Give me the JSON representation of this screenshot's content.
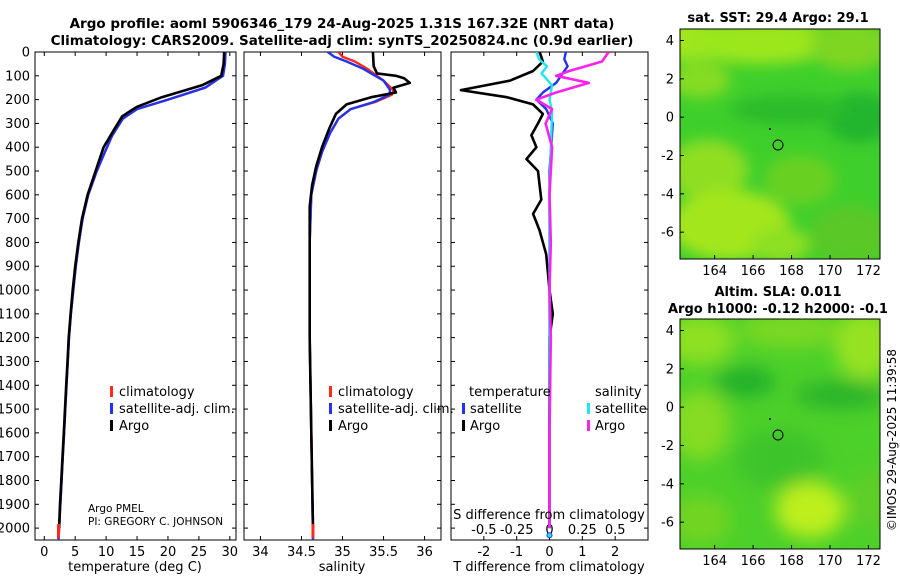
{
  "title": {
    "line1": "Argo profile: aoml 5906346_179 24-Aug-2025 1.31S 167.32E (NRT data)",
    "line2": "Climatology: CARS2009. Satellite-adj clim: synTS_20250824.nc (0.9d earlier)"
  },
  "footer": {
    "operator": "Argo PMEL",
    "pi": "PI: GREGORY C. JOHNSON",
    "stamp": "©IMOS 29-Aug-2025 11:39:58"
  },
  "colors": {
    "climatology": "#ff2a1a",
    "satellite_clim": "#2233ee",
    "argo": "#000000",
    "s_satellite": "#22e5f0",
    "s_argo": "#ff22ee",
    "map_base": "#2ec42a"
  },
  "chart_data": [
    {
      "id": "temperature",
      "type": "line",
      "xlabel": "temperature (deg C)",
      "ylabel": "",
      "xlim": [
        -1.5,
        31
      ],
      "ylim": [
        2050,
        0
      ],
      "xticks": [
        0,
        5,
        10,
        15,
        20,
        25,
        30
      ],
      "yticks": [
        0,
        100,
        200,
        300,
        400,
        500,
        600,
        700,
        800,
        900,
        1000,
        1100,
        1200,
        1300,
        1400,
        1500,
        1600,
        1700,
        1800,
        1900,
        2000
      ],
      "legend": [
        "climatology",
        "satellite-adj. clim.",
        "Argo"
      ],
      "series": [
        {
          "name": "climatology",
          "color": "#ff2a1a",
          "points": [
            [
              29.3,
              0
            ],
            [
              29.2,
              50
            ],
            [
              28.9,
              100
            ],
            [
              26,
              150
            ],
            [
              20,
              200
            ],
            [
              15,
              240
            ],
            [
              12.7,
              280
            ],
            [
              11,
              350
            ],
            [
              9.8,
              420
            ],
            [
              8.5,
              500
            ],
            [
              7.1,
              600
            ],
            [
              6.2,
              700
            ],
            [
              5.6,
              800
            ],
            [
              5.1,
              900
            ],
            [
              4.7,
              1000
            ],
            [
              4.3,
              1100
            ],
            [
              4,
              1200
            ],
            [
              3.8,
              1300
            ],
            [
              3.6,
              1400
            ],
            [
              3.4,
              1500
            ],
            [
              3.2,
              1600
            ],
            [
              3,
              1700
            ],
            [
              2.8,
              1800
            ],
            [
              2.6,
              1900
            ],
            [
              2.4,
              2000
            ],
            [
              2.3,
              2050
            ]
          ]
        },
        {
          "name": "satellite-adj. clim.",
          "color": "#2233ee",
          "points": [
            [
              29.3,
              0
            ],
            [
              29.2,
              50
            ],
            [
              28.9,
              100
            ],
            [
              26,
              150
            ],
            [
              20,
              200
            ],
            [
              15,
              240
            ],
            [
              12.7,
              280
            ],
            [
              11,
              350
            ],
            [
              9.8,
              420
            ],
            [
              8.5,
              500
            ],
            [
              7.1,
              600
            ],
            [
              6.2,
              700
            ],
            [
              5.6,
              800
            ],
            [
              5.1,
              900
            ],
            [
              4.7,
              1000
            ],
            [
              4.3,
              1100
            ],
            [
              4,
              1200
            ],
            [
              3.8,
              1300
            ],
            [
              3.6,
              1400
            ],
            [
              3.4,
              1500
            ],
            [
              3.2,
              1600
            ],
            [
              3,
              1700
            ],
            [
              2.8,
              1800
            ],
            [
              2.6,
              1900
            ],
            [
              2.4,
              2000
            ],
            [
              2.3,
              2050
            ]
          ]
        },
        {
          "name": "Argo",
          "color": "#000000",
          "points": [
            [
              29.1,
              0
            ],
            [
              29,
              50
            ],
            [
              28.6,
              100
            ],
            [
              25.5,
              140
            ],
            [
              19,
              190
            ],
            [
              15,
              230
            ],
            [
              12.6,
              270
            ],
            [
              11.2,
              330
            ],
            [
              9.6,
              400
            ],
            [
              8.3,
              500
            ],
            [
              7,
              600
            ],
            [
              6.1,
              700
            ],
            [
              5.5,
              800
            ],
            [
              5,
              900
            ],
            [
              4.6,
              1000
            ],
            [
              4.25,
              1100
            ],
            [
              3.95,
              1200
            ],
            [
              3.75,
              1300
            ],
            [
              3.55,
              1400
            ],
            [
              3.35,
              1500
            ],
            [
              3.15,
              1600
            ],
            [
              2.95,
              1700
            ],
            [
              2.75,
              1800
            ],
            [
              2.55,
              1900
            ],
            [
              2.4,
              2000
            ]
          ]
        }
      ]
    },
    {
      "id": "salinity",
      "type": "line",
      "xlabel": "salinity",
      "ylabel": "",
      "xlim": [
        33.8,
        36.2
      ],
      "ylim": [
        2050,
        0
      ],
      "xticks": [
        34,
        34.5,
        35,
        35.5,
        36
      ],
      "xtick_labels": [
        "34",
        "34.5",
        "35",
        "35.5",
        "36"
      ],
      "legend": [
        "climatology",
        "satellite-adj. clim.",
        "Argo"
      ],
      "series": [
        {
          "name": "climatology",
          "color": "#ff2a1a",
          "points": [
            [
              34.95,
              0
            ],
            [
              35,
              20
            ],
            [
              35.15,
              40
            ],
            [
              35.3,
              70
            ],
            [
              35.5,
              120
            ],
            [
              35.62,
              160
            ],
            [
              35.6,
              180
            ],
            [
              35.4,
              210
            ],
            [
              35.1,
              240
            ],
            [
              34.95,
              280
            ],
            [
              34.85,
              340
            ],
            [
              34.75,
              420
            ],
            [
              34.68,
              500
            ],
            [
              34.62,
              600
            ],
            [
              34.6,
              800
            ],
            [
              34.6,
              1200
            ],
            [
              34.62,
              1600
            ],
            [
              34.64,
              2050
            ]
          ]
        },
        {
          "name": "satellite-adj. clim.",
          "color": "#2233ee",
          "points": [
            [
              34.82,
              0
            ],
            [
              34.9,
              20
            ],
            [
              35.05,
              40
            ],
            [
              35.25,
              70
            ],
            [
              35.5,
              120
            ],
            [
              35.58,
              160
            ],
            [
              35.57,
              180
            ],
            [
              35.38,
              210
            ],
            [
              35.1,
              240
            ],
            [
              34.95,
              280
            ],
            [
              34.85,
              340
            ],
            [
              34.75,
              420
            ],
            [
              34.68,
              500
            ],
            [
              34.62,
              600
            ],
            [
              34.6,
              800
            ],
            [
              34.6,
              1200
            ],
            [
              34.62,
              1600
            ],
            [
              34.64,
              2050
            ]
          ]
        },
        {
          "name": "Argo",
          "color": "#000000",
          "points": [
            [
              35.37,
              0
            ],
            [
              35.38,
              60
            ],
            [
              35.42,
              90
            ],
            [
              35.65,
              100
            ],
            [
              35.75,
              110
            ],
            [
              35.82,
              130
            ],
            [
              35.62,
              150
            ],
            [
              35.65,
              170
            ],
            [
              35.35,
              190
            ],
            [
              35.05,
              220
            ],
            [
              34.92,
              260
            ],
            [
              34.84,
              320
            ],
            [
              34.75,
              400
            ],
            [
              34.68,
              480
            ],
            [
              34.63,
              560
            ],
            [
              34.6,
              650
            ],
            [
              34.6,
              800
            ],
            [
              34.6,
              1200
            ],
            [
              34.62,
              1600
            ],
            [
              34.64,
              2000
            ]
          ]
        }
      ]
    },
    {
      "id": "difference",
      "type": "line",
      "xlabel": "T difference from climatology",
      "top_label": "S difference from climatology",
      "xlim": [
        -3,
        3
      ],
      "ylim": [
        2050,
        0
      ],
      "xticks": [
        -2,
        -1,
        0,
        1,
        2
      ],
      "s_xticks": [
        -0.5,
        -0.25,
        0,
        0.25,
        0.5
      ],
      "s_xtick_labels": [
        "-0.5",
        "-0.25",
        "0",
        "0.25",
        "0.5"
      ],
      "s_scale": 4,
      "legend_headers": [
        "temperature",
        "salinity"
      ],
      "legend": [
        "satellite",
        "Argo",
        "satellite",
        "Argo"
      ],
      "series": [
        {
          "name": "T satellite",
          "color": "#2233ee",
          "points": [
            [
              0.5,
              0
            ],
            [
              0.45,
              30
            ],
            [
              0.55,
              60
            ],
            [
              0.4,
              90
            ],
            [
              0.2,
              130
            ],
            [
              -0.2,
              170
            ],
            [
              -0.4,
              200
            ],
            [
              -0.1,
              240
            ],
            [
              0.1,
              300
            ],
            [
              0,
              500
            ],
            [
              0,
              1000
            ],
            [
              0,
              1500
            ],
            [
              0,
              2000
            ]
          ]
        },
        {
          "name": "T Argo",
          "color": "#000000",
          "points": [
            [
              -0.3,
              0
            ],
            [
              -0.2,
              40
            ],
            [
              -0.5,
              80
            ],
            [
              -1.2,
              120
            ],
            [
              -2.7,
              160
            ],
            [
              -1.3,
              190
            ],
            [
              -0.5,
              220
            ],
            [
              -0.2,
              260
            ],
            [
              -0.35,
              300
            ],
            [
              -0.55,
              350
            ],
            [
              -0.4,
              400
            ],
            [
              -0.7,
              450
            ],
            [
              -0.35,
              500
            ],
            [
              -0.3,
              560
            ],
            [
              -0.25,
              620
            ],
            [
              -0.5,
              680
            ],
            [
              -0.3,
              750
            ],
            [
              -0.1,
              850
            ],
            [
              0,
              1000
            ],
            [
              0.1,
              1100
            ],
            [
              0,
              1200
            ],
            [
              0,
              1500
            ],
            [
              0,
              1800
            ],
            [
              0,
              2000
            ]
          ]
        },
        {
          "name": "S satellite",
          "color": "#22e5f0",
          "points": [
            [
              -0.1,
              0
            ],
            [
              -0.08,
              30
            ],
            [
              -0.02,
              60
            ],
            [
              -0.06,
              90
            ],
            [
              0.02,
              140
            ],
            [
              0,
              200
            ],
            [
              0.02,
              250
            ],
            [
              0.01,
              400
            ],
            [
              0,
              600
            ],
            [
              0,
              1000
            ],
            [
              0,
              1500
            ],
            [
              0,
              2000
            ]
          ]
        },
        {
          "name": "S Argo",
          "color": "#ff22ee",
          "points": [
            [
              0.45,
              0
            ],
            [
              0.4,
              40
            ],
            [
              0.15,
              80
            ],
            [
              0.05,
              100
            ],
            [
              0.3,
              130
            ],
            [
              0.05,
              170
            ],
            [
              -0.1,
              200
            ],
            [
              0.02,
              240
            ],
            [
              -0.03,
              300
            ],
            [
              0.02,
              400
            ],
            [
              0,
              600
            ],
            [
              0.01,
              800
            ],
            [
              0,
              1000
            ],
            [
              0.01,
              1200
            ],
            [
              0,
              1600
            ],
            [
              0,
              2000
            ]
          ]
        }
      ]
    },
    {
      "id": "sst_map",
      "type": "heatmap",
      "title": "sat. SST: 29.4 Argo: 29.1",
      "xlim": [
        162.2,
        172.6
      ],
      "ylim": [
        -7.4,
        4.6
      ],
      "xticks": [
        164,
        166,
        168,
        170,
        172
      ],
      "yticks": [
        4,
        2,
        0,
        -2,
        -4,
        -6
      ],
      "marker": {
        "x": 167.32,
        "y": -1.31
      }
    },
    {
      "id": "sla_map",
      "type": "heatmap",
      "title": "Altim. SLA: 0.011",
      "subtitle": "Argo h1000: -0.12 h2000: -0.1",
      "xlim": [
        162.2,
        172.6
      ],
      "ylim": [
        -7.4,
        4.6
      ],
      "xticks": [
        164,
        166,
        168,
        170,
        172
      ],
      "yticks": [
        4,
        2,
        0,
        -2,
        -4,
        -6
      ],
      "marker": {
        "x": 167.32,
        "y": -1.31
      }
    }
  ]
}
